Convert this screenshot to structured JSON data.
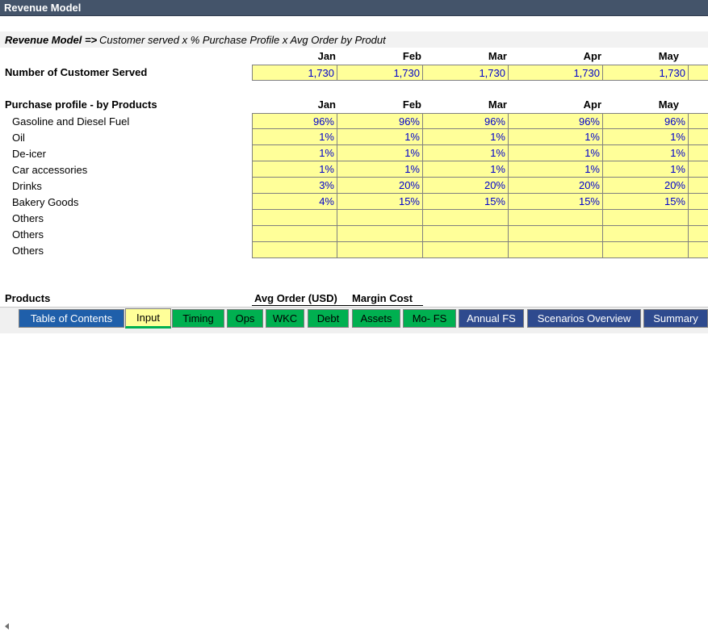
{
  "sheet_title": "Revenue Model",
  "formula": {
    "bold": "Revenue Model =>",
    "rest": "Customer served x %  Purchase Profile x Avg Order by Produt"
  },
  "months": [
    "Jan",
    "Feb",
    "Mar",
    "Apr",
    "May"
  ],
  "customers": {
    "label": "Number of Customer Served",
    "values": [
      "1,730",
      "1,730",
      "1,730",
      "1,730",
      "1,730"
    ]
  },
  "profile": {
    "label": "Purchase profile - by Products",
    "rows": [
      {
        "name": "Gasoline and Diesel Fuel",
        "values": [
          "96%",
          "96%",
          "96%",
          "96%",
          "96%"
        ]
      },
      {
        "name": "Oil",
        "values": [
          "1%",
          "1%",
          "1%",
          "1%",
          "1%"
        ]
      },
      {
        "name": "De-icer",
        "values": [
          "1%",
          "1%",
          "1%",
          "1%",
          "1%"
        ]
      },
      {
        "name": "Car  accessories",
        "values": [
          "1%",
          "1%",
          "1%",
          "1%",
          "1%"
        ]
      },
      {
        "name": "Drinks",
        "values": [
          "3%",
          "20%",
          "20%",
          "20%",
          "20%"
        ]
      },
      {
        "name": "Bakery Goods",
        "values": [
          "4%",
          "15%",
          "15%",
          "15%",
          "15%"
        ]
      },
      {
        "name": "Others",
        "values": [
          "",
          "",
          "",
          "",
          ""
        ]
      },
      {
        "name": "Others",
        "values": [
          "",
          "",
          "",
          "",
          ""
        ]
      },
      {
        "name": "Others",
        "values": [
          "",
          "",
          "",
          "",
          ""
        ]
      }
    ]
  },
  "products_section": {
    "label": "Products",
    "col1": "Avg Order (USD)",
    "col2": "Margin Cost"
  },
  "tabs": [
    {
      "label": "Table of Contents",
      "style": "blue"
    },
    {
      "label": "Input",
      "style": "active"
    },
    {
      "label": "Timing",
      "style": "green"
    },
    {
      "label": "Ops",
      "style": "green"
    },
    {
      "label": "WKC",
      "style": "green"
    },
    {
      "label": "Debt",
      "style": "green"
    },
    {
      "label": "Assets",
      "style": "green"
    },
    {
      "label": "Mo- FS",
      "style": "green"
    },
    {
      "label": "Annual FS",
      "style": "dkblue"
    },
    {
      "label": "Scenarios Overview",
      "style": "dkblue"
    },
    {
      "label": "Summary",
      "style": "dkblue"
    }
  ],
  "colors": {
    "header_bg": "#44546a",
    "input_cell": "#ffff99",
    "input_text": "#0000cc",
    "tab_green": "#00b050",
    "tab_blue": "#1f5faa"
  }
}
